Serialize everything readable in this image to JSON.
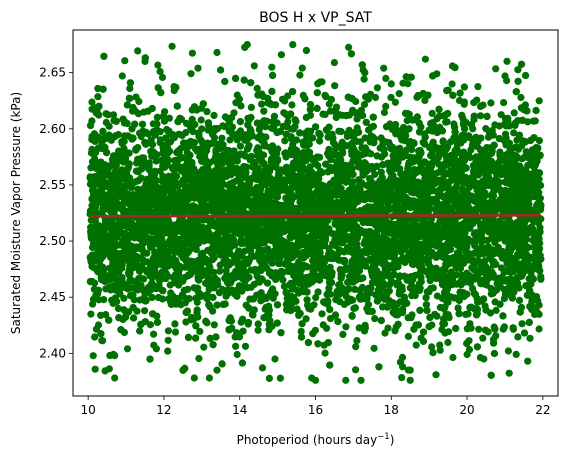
{
  "chart_data": {
    "type": "scatter",
    "title": "BOS H x VP_SAT",
    "xlabel_main": "Photoperiod (hours day",
    "xlabel_sup": "−1",
    "xlabel_close": ")",
    "ylabel": "Saturated Moisture Vapor Pressure (kPa)",
    "xlim": [
      9.6,
      22.4
    ],
    "ylim": [
      2.362,
      2.688
    ],
    "x_ticks": [
      10,
      12,
      14,
      16,
      18,
      20,
      22
    ],
    "y_ticks": [
      2.4,
      2.45,
      2.5,
      2.55,
      2.6,
      2.65
    ],
    "x_tick_labels": [
      "10",
      "12",
      "14",
      "16",
      "18",
      "20",
      "22"
    ],
    "y_tick_labels": [
      "2.40",
      "2.45",
      "2.50",
      "2.55",
      "2.60",
      "2.65"
    ],
    "grid": false,
    "legend": "none",
    "colors": {
      "points": "#007000",
      "trend": "#b22222"
    },
    "series": [
      {
        "kind": "scatter",
        "marker": "circle",
        "approx_count": 8000,
        "x_range": [
          10.05,
          21.95
        ],
        "y_center": 2.522,
        "y_spread_sd": 0.048,
        "points": [
          [
            10.1,
            2.607
          ],
          [
            10.1,
            2.487
          ],
          [
            10.7,
            2.378
          ],
          [
            10.7,
            2.398
          ],
          [
            10.9,
            2.647
          ],
          [
            11.1,
            2.627
          ],
          [
            11.1,
            2.636
          ],
          [
            11.5,
            2.66
          ],
          [
            11.8,
            2.404
          ],
          [
            11.9,
            2.651
          ],
          [
            12.1,
            2.402
          ],
          [
            12.8,
            2.378
          ],
          [
            12.9,
            2.654
          ],
          [
            13.2,
            2.378
          ],
          [
            13.4,
            2.385
          ],
          [
            13.4,
            2.668
          ],
          [
            14.2,
            2.675
          ],
          [
            14.6,
            2.387
          ],
          [
            15.1,
            2.666
          ],
          [
            15.4,
            2.675
          ],
          [
            15.9,
            2.378
          ],
          [
            16.0,
            2.376
          ],
          [
            16.5,
            2.659
          ],
          [
            16.8,
            2.376
          ],
          [
            17.2,
            2.376
          ],
          [
            17.3,
            2.65
          ],
          [
            17.8,
            2.654
          ],
          [
            18.0,
            2.64
          ],
          [
            18.3,
            2.388
          ],
          [
            18.5,
            2.385
          ],
          [
            18.5,
            2.376
          ],
          [
            18.9,
            2.662
          ],
          [
            19.2,
            2.649
          ],
          [
            20.0,
            2.399
          ],
          [
            20.7,
            2.409
          ],
          [
            21.0,
            2.647
          ],
          [
            21.5,
            2.617
          ],
          [
            21.6,
            2.393
          ],
          [
            21.8,
            2.607
          ],
          [
            21.9,
            2.443
          ]
        ]
      },
      {
        "kind": "line",
        "x": [
          10.05,
          21.95
        ],
        "y": [
          2.522,
          2.523
        ]
      }
    ]
  }
}
